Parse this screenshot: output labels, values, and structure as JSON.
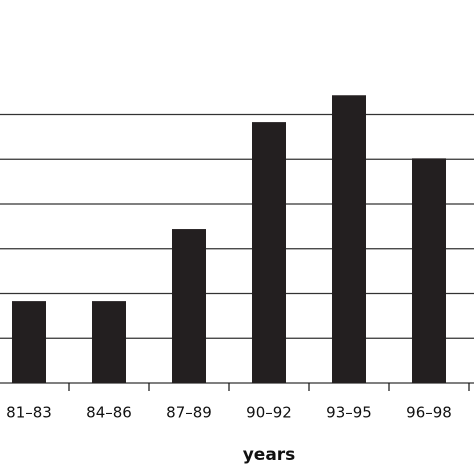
{
  "chart_data": {
    "type": "bar",
    "x_label": "years",
    "categories": [
      "81–83",
      "84–86",
      "87–89",
      "90–92",
      "93–95",
      "96–98"
    ],
    "values": [
      1.83,
      1.83,
      3.44,
      5.83,
      6.43,
      5.02
    ],
    "color": "#231f20",
    "ylim": [
      0,
      8
    ],
    "yticks": [
      0,
      1,
      2,
      3,
      4,
      5,
      6
    ],
    "grid": true
  }
}
